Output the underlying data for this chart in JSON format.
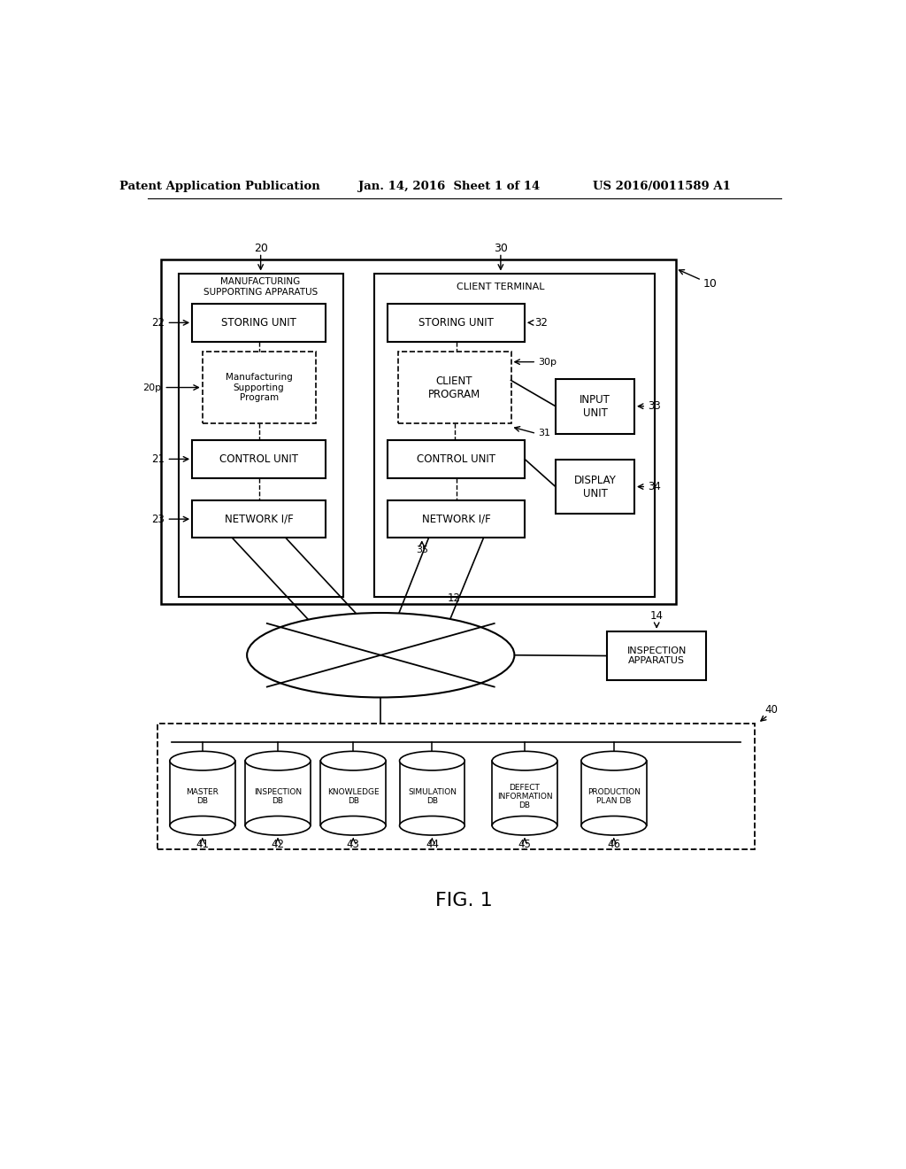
{
  "bg_color": "#ffffff",
  "header_text_left": "Patent Application Publication",
  "header_text_mid": "Jan. 14, 2016  Sheet 1 of 14",
  "header_text_right": "US 2016/0011589 A1",
  "fig_label": "FIG. 1"
}
